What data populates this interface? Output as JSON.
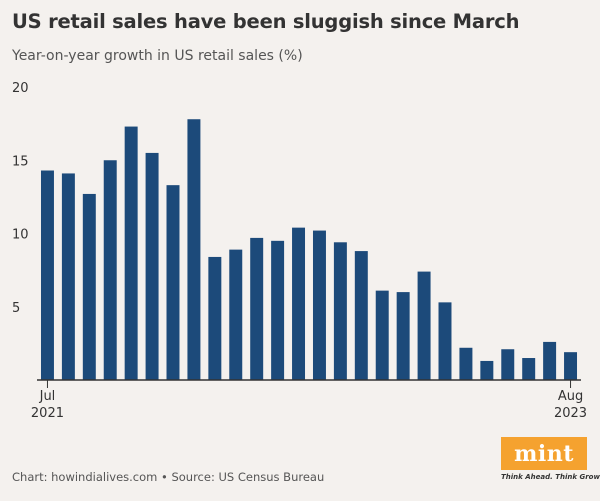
{
  "title": "US retail sales have been sluggish since March",
  "subtitle": "Year-on-year growth in US retail sales (%)",
  "source": "Chart: howindialives.com • Source: US Census Bureau",
  "logo": {
    "name": "mint",
    "tagline": "Think Ahead. Think Growth."
  },
  "colors": {
    "bar": "#1c4a7a",
    "axis": "#333333",
    "background": "#f4f1ee",
    "logo": "#f5a22f"
  },
  "chart_data": {
    "type": "bar",
    "title": "US retail sales have been sluggish since March",
    "ylim": [
      0,
      20
    ],
    "yticks": [
      5,
      10,
      15,
      20
    ],
    "grid": false,
    "x_labels": [
      {
        "index": 0,
        "line1": "Jul",
        "line2": "2021"
      },
      {
        "index": 25,
        "line1": "Aug",
        "line2": "2023"
      }
    ],
    "values": [
      14.3,
      14.1,
      12.7,
      15.0,
      17.3,
      15.5,
      13.3,
      17.8,
      8.4,
      8.9,
      9.7,
      9.5,
      10.4,
      10.2,
      9.4,
      8.8,
      6.1,
      6.0,
      7.4,
      5.3,
      2.2,
      1.3,
      2.1,
      1.5,
      2.6,
      1.9
    ]
  }
}
